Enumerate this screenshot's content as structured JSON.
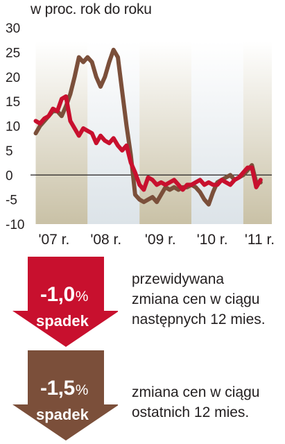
{
  "chart_data": {
    "type": "line",
    "title": "",
    "subtitle": "w proc. rok do roku",
    "xlabel": "",
    "ylabel": "",
    "ylim": [
      -10,
      30
    ],
    "yticks": [
      "30",
      "25",
      "20",
      "15",
      "10",
      "5",
      "0",
      "-5",
      "-10"
    ],
    "xticks": [
      "'07 r.",
      "'08 r.",
      "'09 r.",
      "'10 r.",
      "'11 r."
    ],
    "grid": false,
    "zero_line": true,
    "x": [
      "2007-01",
      "2007-02",
      "2007-03",
      "2007-04",
      "2007-05",
      "2007-06",
      "2007-07",
      "2007-08",
      "2007-09",
      "2007-10",
      "2007-11",
      "2007-12",
      "2008-01",
      "2008-02",
      "2008-03",
      "2008-04",
      "2008-05",
      "2008-06",
      "2008-07",
      "2008-08",
      "2008-09",
      "2008-10",
      "2008-11",
      "2008-12",
      "2009-01",
      "2009-02",
      "2009-03",
      "2009-04",
      "2009-05",
      "2009-06",
      "2009-07",
      "2009-08",
      "2009-09",
      "2009-10",
      "2009-11",
      "2009-12",
      "2010-01",
      "2010-02",
      "2010-03",
      "2010-04",
      "2010-05",
      "2010-06",
      "2010-07",
      "2010-08",
      "2010-09",
      "2010-10",
      "2010-11",
      "2010-12",
      "2011-01",
      "2011-02",
      "2011-03",
      "2011-04",
      "2011-05"
    ],
    "series": [
      {
        "name": "przewidywana zmiana cen w ciągu następnych 12 mies.",
        "color": "#c8102e",
        "values": [
          11,
          10.5,
          11.5,
          12,
          13.5,
          13,
          15.5,
          16,
          11,
          9.5,
          8,
          9.5,
          9,
          8.5,
          6.5,
          8,
          7,
          6.5,
          7.5,
          6,
          5,
          6,
          2.5,
          0.5,
          -2,
          -3,
          -0.5,
          -1,
          -2,
          -1.5,
          -2,
          -1.5,
          -1,
          -2,
          -3,
          -2,
          -2,
          -1.5,
          -1,
          -2,
          -1.5,
          -2,
          -2,
          -1,
          -1.5,
          -2,
          -1,
          -0.5,
          0.5,
          1.5,
          1.5,
          -2.5,
          -1.0
        ]
      },
      {
        "name": "zmiana cen w ciągu ostatnich 12 mies.",
        "color": "#7b4f3a",
        "values": [
          8.5,
          10,
          11,
          12,
          13,
          13,
          12,
          14,
          16.5,
          20,
          24,
          23,
          24,
          23,
          20,
          18,
          20,
          23,
          25.5,
          24,
          17,
          10,
          4,
          -4,
          -5,
          -5.5,
          -5,
          -4.5,
          -5.5,
          -4,
          -2.5,
          -3,
          -2.5,
          -3,
          -2.5,
          -2.5,
          -2,
          -2.5,
          -3.5,
          -5,
          -6,
          -3.5,
          -1.5,
          -1,
          -0.5,
          0,
          -1,
          -0.5,
          0,
          1,
          2,
          -1.5,
          -1.5
        ]
      }
    ],
    "shading_colors": [
      "#c9c1a6",
      "#dce3e8"
    ]
  },
  "legend": {
    "red": {
      "value": "-1,0",
      "pct": "%",
      "label": "spadek",
      "color": "#c8102e",
      "lines": [
        "przewidywana",
        "zmiana cen w ciągu",
        "następnych 12 mies."
      ]
    },
    "brown": {
      "value": "-1,5",
      "pct": "%",
      "label": "spadek",
      "color": "#7b4f3a",
      "lines": [
        "zmiana cen w ciągu",
        "ostatnich 12 mies."
      ]
    }
  }
}
